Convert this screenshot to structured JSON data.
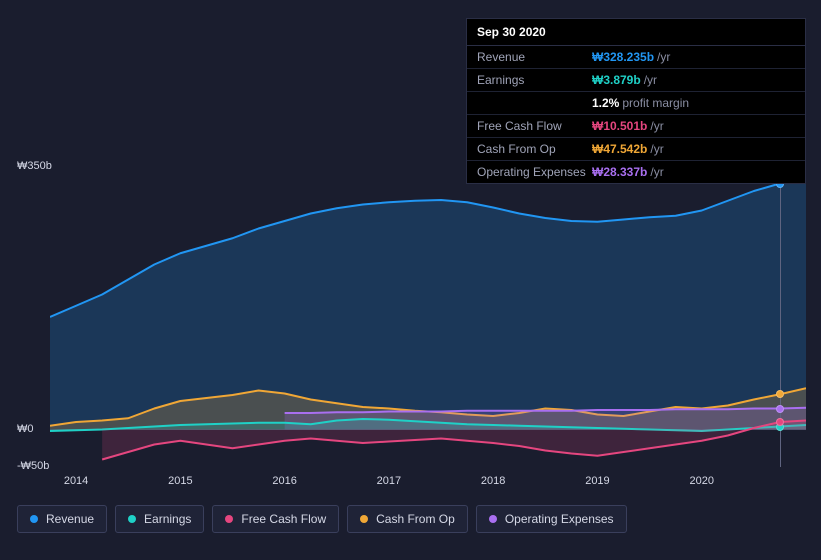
{
  "background_color": "#1a1d2e",
  "tooltip": {
    "date": "Sep 30 2020",
    "rows": [
      {
        "label": "Revenue",
        "value": "₩328.235b",
        "suffix": "/yr",
        "color": "#2196f3"
      },
      {
        "label": "Earnings",
        "value": "₩3.879b",
        "suffix": "/yr",
        "color": "#1fd1c7"
      },
      {
        "label": "",
        "value": "1.2%",
        "suffix": "profit margin",
        "color": "#ffffff"
      },
      {
        "label": "Free Cash Flow",
        "value": "₩10.501b",
        "suffix": "/yr",
        "color": "#e5467f"
      },
      {
        "label": "Cash From Op",
        "value": "₩47.542b",
        "suffix": "/yr",
        "color": "#f0a736"
      },
      {
        "label": "Operating Expenses",
        "value": "₩28.337b",
        "suffix": "/yr",
        "color": "#a96ff0"
      }
    ]
  },
  "chart": {
    "type": "area",
    "ylim": [
      -50,
      350
    ],
    "yticks": [
      {
        "v": 350,
        "label": "₩350b"
      },
      {
        "v": 0,
        "label": "₩0"
      },
      {
        "v": -50,
        "label": "-₩50b"
      }
    ],
    "xlim": [
      2013.75,
      2021.0
    ],
    "xticks": [
      2014,
      2015,
      2016,
      2017,
      2018,
      2019,
      2020
    ],
    "cursor_x": 2020.75,
    "series": [
      {
        "name": "Revenue",
        "color": "#2196f3",
        "fill": "#2196f3",
        "fill_opacity": 0.22,
        "points": [
          [
            2013.75,
            150
          ],
          [
            2014.0,
            165
          ],
          [
            2014.25,
            180
          ],
          [
            2014.5,
            200
          ],
          [
            2014.75,
            220
          ],
          [
            2015.0,
            235
          ],
          [
            2015.25,
            245
          ],
          [
            2015.5,
            255
          ],
          [
            2015.75,
            268
          ],
          [
            2016.0,
            278
          ],
          [
            2016.25,
            288
          ],
          [
            2016.5,
            295
          ],
          [
            2016.75,
            300
          ],
          [
            2017.0,
            303
          ],
          [
            2017.25,
            305
          ],
          [
            2017.5,
            306
          ],
          [
            2017.75,
            303
          ],
          [
            2018.0,
            296
          ],
          [
            2018.25,
            288
          ],
          [
            2018.5,
            282
          ],
          [
            2018.75,
            278
          ],
          [
            2019.0,
            277
          ],
          [
            2019.25,
            280
          ],
          [
            2019.5,
            283
          ],
          [
            2019.75,
            285
          ],
          [
            2020.0,
            292
          ],
          [
            2020.25,
            305
          ],
          [
            2020.5,
            318
          ],
          [
            2020.75,
            328
          ],
          [
            2021.0,
            340
          ]
        ]
      },
      {
        "name": "Cash From Op",
        "color": "#f0a736",
        "fill": "#f0a736",
        "fill_opacity": 0.22,
        "points": [
          [
            2013.75,
            5
          ],
          [
            2014.0,
            10
          ],
          [
            2014.25,
            12
          ],
          [
            2014.5,
            15
          ],
          [
            2014.75,
            28
          ],
          [
            2015.0,
            38
          ],
          [
            2015.25,
            42
          ],
          [
            2015.5,
            46
          ],
          [
            2015.75,
            52
          ],
          [
            2016.0,
            48
          ],
          [
            2016.25,
            40
          ],
          [
            2016.5,
            35
          ],
          [
            2016.75,
            30
          ],
          [
            2017.0,
            28
          ],
          [
            2017.25,
            25
          ],
          [
            2017.5,
            23
          ],
          [
            2017.75,
            20
          ],
          [
            2018.0,
            18
          ],
          [
            2018.25,
            22
          ],
          [
            2018.5,
            28
          ],
          [
            2018.75,
            26
          ],
          [
            2019.0,
            20
          ],
          [
            2019.25,
            18
          ],
          [
            2019.5,
            24
          ],
          [
            2019.75,
            30
          ],
          [
            2020.0,
            28
          ],
          [
            2020.25,
            32
          ],
          [
            2020.5,
            40
          ],
          [
            2020.75,
            47
          ],
          [
            2021.0,
            55
          ]
        ]
      },
      {
        "name": "Operating Expenses",
        "color": "#a96ff0",
        "fill": "#a96ff0",
        "fill_opacity": 0.2,
        "points": [
          [
            2016.0,
            22
          ],
          [
            2016.25,
            22
          ],
          [
            2016.5,
            23
          ],
          [
            2016.75,
            23
          ],
          [
            2017.0,
            24
          ],
          [
            2017.25,
            24
          ],
          [
            2017.5,
            24
          ],
          [
            2017.75,
            25
          ],
          [
            2018.0,
            25
          ],
          [
            2018.25,
            25
          ],
          [
            2018.5,
            25
          ],
          [
            2018.75,
            25
          ],
          [
            2019.0,
            26
          ],
          [
            2019.25,
            26
          ],
          [
            2019.5,
            26
          ],
          [
            2019.75,
            27
          ],
          [
            2020.0,
            27
          ],
          [
            2020.25,
            27
          ],
          [
            2020.5,
            28
          ],
          [
            2020.75,
            28
          ],
          [
            2021.0,
            29
          ]
        ]
      },
      {
        "name": "Earnings",
        "color": "#1fd1c7",
        "fill": "#1fd1c7",
        "fill_opacity": 0.2,
        "points": [
          [
            2013.75,
            -2
          ],
          [
            2014.0,
            -1
          ],
          [
            2014.25,
            0
          ],
          [
            2014.5,
            2
          ],
          [
            2014.75,
            4
          ],
          [
            2015.0,
            6
          ],
          [
            2015.25,
            7
          ],
          [
            2015.5,
            8
          ],
          [
            2015.75,
            9
          ],
          [
            2016.0,
            9
          ],
          [
            2016.25,
            7
          ],
          [
            2016.5,
            12
          ],
          [
            2016.75,
            14
          ],
          [
            2017.0,
            13
          ],
          [
            2017.25,
            11
          ],
          [
            2017.5,
            9
          ],
          [
            2017.75,
            7
          ],
          [
            2018.0,
            6
          ],
          [
            2018.25,
            5
          ],
          [
            2018.5,
            4
          ],
          [
            2018.75,
            3
          ],
          [
            2019.0,
            2
          ],
          [
            2019.25,
            1
          ],
          [
            2019.5,
            0
          ],
          [
            2019.75,
            -1
          ],
          [
            2020.0,
            -2
          ],
          [
            2020.25,
            0
          ],
          [
            2020.5,
            2
          ],
          [
            2020.75,
            4
          ],
          [
            2021.0,
            6
          ]
        ]
      },
      {
        "name": "Free Cash Flow",
        "color": "#e5467f",
        "fill": "#e5467f",
        "fill_opacity": 0.18,
        "points": [
          [
            2014.25,
            -40
          ],
          [
            2014.5,
            -30
          ],
          [
            2014.75,
            -20
          ],
          [
            2015.0,
            -15
          ],
          [
            2015.25,
            -20
          ],
          [
            2015.5,
            -25
          ],
          [
            2015.75,
            -20
          ],
          [
            2016.0,
            -15
          ],
          [
            2016.25,
            -12
          ],
          [
            2016.5,
            -15
          ],
          [
            2016.75,
            -18
          ],
          [
            2017.0,
            -16
          ],
          [
            2017.25,
            -14
          ],
          [
            2017.5,
            -12
          ],
          [
            2017.75,
            -15
          ],
          [
            2018.0,
            -18
          ],
          [
            2018.25,
            -22
          ],
          [
            2018.5,
            -28
          ],
          [
            2018.75,
            -32
          ],
          [
            2019.0,
            -35
          ],
          [
            2019.25,
            -30
          ],
          [
            2019.5,
            -25
          ],
          [
            2019.75,
            -20
          ],
          [
            2020.0,
            -15
          ],
          [
            2020.25,
            -8
          ],
          [
            2020.5,
            2
          ],
          [
            2020.75,
            10
          ],
          [
            2021.0,
            12
          ]
        ]
      }
    ],
    "legend": [
      {
        "label": "Revenue",
        "color": "#2196f3"
      },
      {
        "label": "Earnings",
        "color": "#1fd1c7"
      },
      {
        "label": "Free Cash Flow",
        "color": "#e5467f"
      },
      {
        "label": "Cash From Op",
        "color": "#f0a736"
      },
      {
        "label": "Operating Expenses",
        "color": "#a96ff0"
      }
    ]
  }
}
